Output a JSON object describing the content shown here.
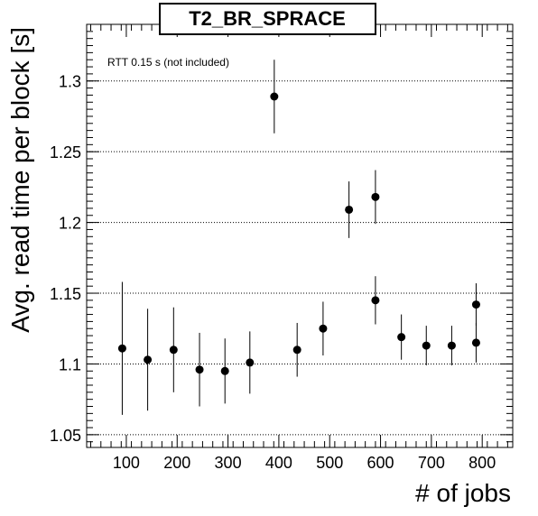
{
  "chart_data": {
    "type": "scatter",
    "title": "T2_BR_SPRACE",
    "xlabel": "# of jobs",
    "ylabel": "Avg. read time per block [s]",
    "annotation": "RTT 0.15 s (not included)",
    "xlim": [
      22,
      860
    ],
    "ylim": [
      1.041,
      1.34
    ],
    "x_ticks": [
      100,
      200,
      300,
      400,
      500,
      600,
      700,
      800
    ],
    "y_ticks": [
      1.05,
      1.1,
      1.15,
      1.2,
      1.25,
      1.3
    ],
    "y_tick_labels": [
      "1.05",
      "1.1",
      "1.15",
      "1.2",
      "1.25",
      "1.3"
    ],
    "y_grid": true,
    "x_grid": false,
    "marker_color": "#000000",
    "points": [
      {
        "x": 92,
        "y": 1.111,
        "err": 0.047
      },
      {
        "x": 142,
        "y": 1.103,
        "err": 0.036
      },
      {
        "x": 193,
        "y": 1.11,
        "err": 0.03
      },
      {
        "x": 244,
        "y": 1.096,
        "err": 0.026
      },
      {
        "x": 294,
        "y": 1.095,
        "err": 0.023
      },
      {
        "x": 343,
        "y": 1.101,
        "err": 0.022
      },
      {
        "x": 391,
        "y": 1.289,
        "err": 0.026
      },
      {
        "x": 436,
        "y": 1.11,
        "err": 0.019
      },
      {
        "x": 487,
        "y": 1.125,
        "err": 0.019
      },
      {
        "x": 538,
        "y": 1.209,
        "err": 0.02
      },
      {
        "x": 590,
        "y": 1.145,
        "err": 0.017
      },
      {
        "x": 590,
        "y": 1.218,
        "err": 0.019
      },
      {
        "x": 641,
        "y": 1.119,
        "err": 0.016
      },
      {
        "x": 690,
        "y": 1.113,
        "err": 0.014
      },
      {
        "x": 740,
        "y": 1.113,
        "err": 0.014
      },
      {
        "x": 788,
        "y": 1.142,
        "err": 0.015
      },
      {
        "x": 788,
        "y": 1.115,
        "err": 0.014
      }
    ]
  }
}
